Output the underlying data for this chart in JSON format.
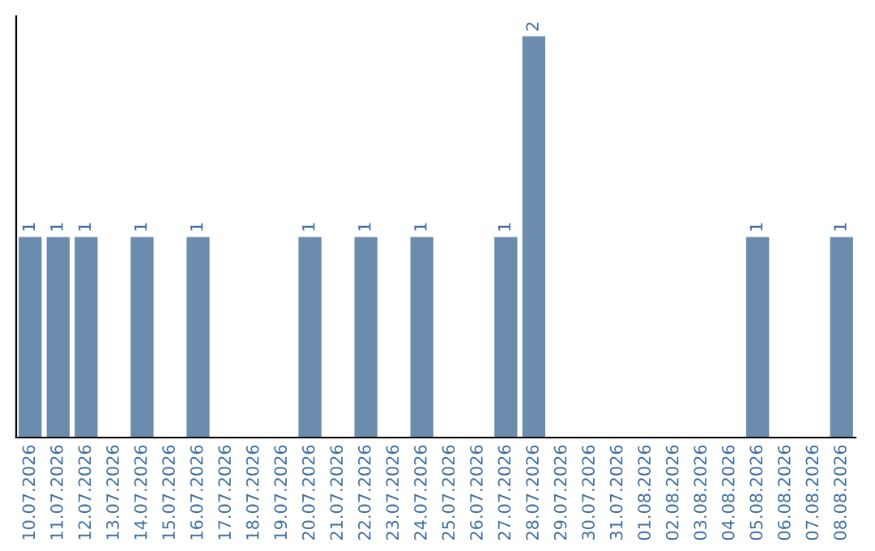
{
  "chart_data": {
    "type": "bar",
    "categories": [
      "10.07.2026",
      "11.07.2026",
      "12.07.2026",
      "13.07.2026",
      "14.07.2026",
      "15.07.2026",
      "16.07.2026",
      "17.07.2026",
      "18.07.2026",
      "19.07.2026",
      "20.07.2026",
      "21.07.2026",
      "22.07.2026",
      "23.07.2026",
      "24.07.2026",
      "25.07.2026",
      "26.07.2026",
      "27.07.2026",
      "28.07.2026",
      "29.07.2026",
      "30.07.2026",
      "31.07.2026",
      "01.08.2026",
      "02.08.2026",
      "03.08.2026",
      "04.08.2026",
      "05.08.2026",
      "06.08.2026",
      "07.08.2026",
      "08.08.2026"
    ],
    "values": [
      1,
      1,
      1,
      0,
      1,
      0,
      1,
      0,
      0,
      0,
      1,
      0,
      1,
      0,
      1,
      0,
      0,
      1,
      2,
      0,
      0,
      0,
      0,
      0,
      0,
      0,
      1,
      0,
      0,
      1
    ],
    "value_labels": [
      "1",
      "1",
      "1",
      null,
      "1",
      null,
      "1",
      null,
      null,
      null,
      "1",
      null,
      "1",
      null,
      "1",
      null,
      null,
      "1",
      "2",
      null,
      null,
      null,
      null,
      null,
      null,
      null,
      "1",
      null,
      null,
      "1"
    ],
    "color": "#6b8cad",
    "tick_labels": "x",
    "grid": false,
    "legend": false
  }
}
